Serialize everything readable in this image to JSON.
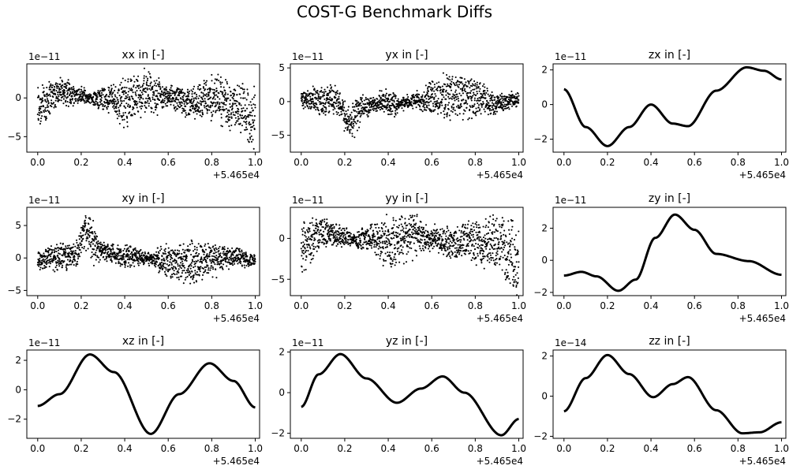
{
  "figure": {
    "title": "COST-G Benchmark Diffs"
  },
  "chart_data": [
    {
      "type": "scatter",
      "title": "xx in [-]",
      "ylim": [
        -7,
        4.4
      ],
      "yticks": [
        -5,
        0
      ],
      "exponent": "1e−11",
      "xlim": [
        -0.05,
        1.02
      ],
      "xticks": [
        "0.0",
        "0.2",
        "0.4",
        "0.6",
        "0.8",
        "1.0"
      ],
      "xoffset": "+5.465e4",
      "style": "noisy",
      "mean": [
        [
          0,
          -1.0
        ],
        [
          0.1,
          0.8
        ],
        [
          0.2,
          0.3
        ],
        [
          0.25,
          -0.2
        ],
        [
          0.3,
          0.0
        ],
        [
          0.4,
          -0.5
        ],
        [
          0.5,
          0.6
        ],
        [
          0.6,
          0.0
        ],
        [
          0.7,
          -0.6
        ],
        [
          0.8,
          0.0
        ],
        [
          0.9,
          -0.8
        ],
        [
          1.0,
          -2.6
        ]
      ],
      "spread": [
        [
          0,
          3.6
        ],
        [
          0.1,
          2.0
        ],
        [
          0.2,
          1.4
        ],
        [
          0.25,
          0.4
        ],
        [
          0.3,
          0.7
        ],
        [
          0.4,
          3.5
        ],
        [
          0.5,
          3.0
        ],
        [
          0.6,
          1.4
        ],
        [
          0.7,
          2.3
        ],
        [
          0.8,
          2.8
        ],
        [
          0.9,
          3.0
        ],
        [
          1.0,
          3.8
        ]
      ],
      "osc": [
        [
          0,
          0
        ],
        [
          0.2,
          0
        ],
        [
          0.3,
          1.2
        ],
        [
          0.4,
          0.3
        ],
        [
          0.5,
          1.0
        ],
        [
          0.6,
          0.4
        ],
        [
          0.7,
          0.2
        ],
        [
          0.85,
          1.1
        ],
        [
          1.0,
          1.8
        ]
      ]
    },
    {
      "type": "scatter",
      "title": "yx in [-]",
      "ylim": [
        -7.5,
        5.6
      ],
      "yticks": [
        -5,
        0,
        5
      ],
      "exponent": "1e−11",
      "xlim": [
        -0.05,
        1.02
      ],
      "xticks": [
        "0.0",
        "0.2",
        "0.4",
        "0.6",
        "0.8",
        "1.0"
      ],
      "xoffset": "+5.465e4",
      "style": "noisy",
      "mean": [
        [
          0,
          0.3
        ],
        [
          0.1,
          0.3
        ],
        [
          0.17,
          0.0
        ],
        [
          0.22,
          -3.2
        ],
        [
          0.28,
          -1.0
        ],
        [
          0.35,
          -0.2
        ],
        [
          0.45,
          -0.4
        ],
        [
          0.5,
          0.0
        ],
        [
          0.6,
          0.6
        ],
        [
          0.7,
          0.8
        ],
        [
          0.8,
          0.4
        ],
        [
          0.9,
          -0.3
        ],
        [
          1.0,
          0.3
        ]
      ],
      "spread": [
        [
          0,
          1.5
        ],
        [
          0.1,
          2.5
        ],
        [
          0.2,
          2.0
        ],
        [
          0.25,
          3.2
        ],
        [
          0.3,
          1.2
        ],
        [
          0.4,
          1.8
        ],
        [
          0.5,
          0.6
        ],
        [
          0.6,
          2.8
        ],
        [
          0.7,
          4.2
        ],
        [
          0.8,
          3.2
        ],
        [
          0.9,
          1.6
        ],
        [
          1.0,
          1.0
        ]
      ],
      "osc": [
        [
          0,
          0
        ],
        [
          0.15,
          0.4
        ],
        [
          0.22,
          1.2
        ],
        [
          0.3,
          0.6
        ],
        [
          0.5,
          0.6
        ],
        [
          0.7,
          0.2
        ],
        [
          1.0,
          0.3
        ]
      ]
    },
    {
      "type": "line",
      "title": "zx in [-]",
      "ylim": [
        -2.75,
        2.35
      ],
      "yticks": [
        -2,
        0,
        2
      ],
      "exponent": "1e−11",
      "xlim": [
        -0.05,
        1.02
      ],
      "xticks": [
        "0.0",
        "0.2",
        "0.4",
        "0.6",
        "0.8",
        "1.0"
      ],
      "xoffset": "+5.465e4",
      "style": "line",
      "mean": [
        [
          0,
          0.88
        ],
        [
          0.1,
          -1.3
        ],
        [
          0.2,
          -2.4
        ],
        [
          0.3,
          -1.3
        ],
        [
          0.4,
          0.0
        ],
        [
          0.5,
          -1.1
        ],
        [
          0.57,
          -1.25
        ],
        [
          0.7,
          0.8
        ],
        [
          0.84,
          2.15
        ],
        [
          0.92,
          1.95
        ],
        [
          1.0,
          1.45
        ]
      ]
    },
    {
      "type": "scatter",
      "title": "xy in [-]",
      "ylim": [
        -5.8,
        7.8
      ],
      "yticks": [
        -5,
        0,
        5
      ],
      "exponent": "1e−11",
      "xlim": [
        -0.05,
        1.02
      ],
      "xticks": [
        "0.0",
        "0.2",
        "0.4",
        "0.6",
        "0.8",
        "1.0"
      ],
      "xoffset": "+5.465e4",
      "style": "noisy",
      "mean": [
        [
          0,
          -0.3
        ],
        [
          0.1,
          0.2
        ],
        [
          0.17,
          0.5
        ],
        [
          0.22,
          4.2
        ],
        [
          0.28,
          1.5
        ],
        [
          0.35,
          0.4
        ],
        [
          0.45,
          0.3
        ],
        [
          0.5,
          0.0
        ],
        [
          0.6,
          -0.6
        ],
        [
          0.7,
          -0.7
        ],
        [
          0.8,
          -0.3
        ],
        [
          0.9,
          0.2
        ],
        [
          1.0,
          -0.5
        ]
      ],
      "spread": [
        [
          0,
          1.5
        ],
        [
          0.1,
          2.5
        ],
        [
          0.2,
          2.0
        ],
        [
          0.25,
          3.2
        ],
        [
          0.3,
          1.2
        ],
        [
          0.4,
          1.8
        ],
        [
          0.5,
          0.6
        ],
        [
          0.6,
          2.8
        ],
        [
          0.7,
          4.2
        ],
        [
          0.8,
          3.2
        ],
        [
          0.9,
          1.6
        ],
        [
          1.0,
          1.0
        ]
      ],
      "osc": [
        [
          0,
          0
        ],
        [
          0.15,
          0.4
        ],
        [
          0.22,
          1.2
        ],
        [
          0.3,
          0.6
        ],
        [
          0.5,
          0.6
        ],
        [
          0.7,
          0.2
        ],
        [
          1.0,
          0.3
        ]
      ]
    },
    {
      "type": "scatter",
      "title": "yy in [-]",
      "ylim": [
        -7,
        3.8
      ],
      "yticks": [
        -5,
        0
      ],
      "exponent": "1e−11",
      "xlim": [
        -0.05,
        1.02
      ],
      "xticks": [
        "0.0",
        "0.2",
        "0.4",
        "0.6",
        "0.8",
        "1.0"
      ],
      "xoffset": "+5.465e4",
      "style": "noisy",
      "mean": [
        [
          0,
          -1.0
        ],
        [
          0.1,
          0.8
        ],
        [
          0.2,
          0.3
        ],
        [
          0.25,
          -0.2
        ],
        [
          0.3,
          0.0
        ],
        [
          0.4,
          -0.5
        ],
        [
          0.5,
          0.6
        ],
        [
          0.6,
          0.0
        ],
        [
          0.7,
          -0.6
        ],
        [
          0.8,
          0.0
        ],
        [
          0.9,
          -0.8
        ],
        [
          1.0,
          -2.6
        ]
      ],
      "spread": [
        [
          0,
          3.6
        ],
        [
          0.1,
          2.0
        ],
        [
          0.2,
          1.4
        ],
        [
          0.25,
          0.4
        ],
        [
          0.3,
          0.7
        ],
        [
          0.4,
          3.5
        ],
        [
          0.5,
          3.0
        ],
        [
          0.6,
          1.4
        ],
        [
          0.7,
          2.3
        ],
        [
          0.8,
          2.8
        ],
        [
          0.9,
          3.0
        ],
        [
          1.0,
          3.8
        ]
      ],
      "osc": [
        [
          0,
          0
        ],
        [
          0.2,
          0
        ],
        [
          0.3,
          1.2
        ],
        [
          0.4,
          0.3
        ],
        [
          0.5,
          1.0
        ],
        [
          0.6,
          0.4
        ],
        [
          0.7,
          0.2
        ],
        [
          0.85,
          1.1
        ],
        [
          1.0,
          1.8
        ]
      ]
    },
    {
      "type": "line",
      "title": "zy in [-]",
      "ylim": [
        -2.2,
        3.3
      ],
      "yticks": [
        -2,
        0,
        2
      ],
      "exponent": "1e−11",
      "xlim": [
        -0.05,
        1.02
      ],
      "xticks": [
        "0.0",
        "0.2",
        "0.4",
        "0.6",
        "0.8",
        "1.0"
      ],
      "xoffset": "+5.465e4",
      "style": "line",
      "mean": [
        [
          0,
          -0.95
        ],
        [
          0.08,
          -0.72
        ],
        [
          0.15,
          -1.0
        ],
        [
          0.25,
          -1.9
        ],
        [
          0.33,
          -1.2
        ],
        [
          0.42,
          1.4
        ],
        [
          0.51,
          2.85
        ],
        [
          0.6,
          1.9
        ],
        [
          0.7,
          0.4
        ],
        [
          0.85,
          -0.05
        ],
        [
          1.0,
          -0.9
        ]
      ]
    },
    {
      "type": "line",
      "title": "xz in [-]",
      "ylim": [
        -3.3,
        2.7
      ],
      "yticks": [
        -2,
        0,
        2
      ],
      "exponent": "1e−11",
      "xlim": [
        -0.05,
        1.02
      ],
      "xticks": [
        "0.0",
        "0.2",
        "0.4",
        "0.6",
        "0.8",
        "1.0"
      ],
      "xoffset": "+5.465e4",
      "style": "line",
      "mean": [
        [
          0,
          -1.1
        ],
        [
          0.1,
          -0.3
        ],
        [
          0.24,
          2.4
        ],
        [
          0.35,
          1.2
        ],
        [
          0.52,
          -3.0
        ],
        [
          0.65,
          -0.3
        ],
        [
          0.79,
          1.8
        ],
        [
          0.9,
          0.6
        ],
        [
          1.0,
          -1.2
        ]
      ]
    },
    {
      "type": "line",
      "title": "yz in [-]",
      "ylim": [
        -2.25,
        2.1
      ],
      "yticks": [
        -2,
        0,
        2
      ],
      "exponent": "1e−11",
      "xlim": [
        -0.05,
        1.02
      ],
      "xticks": [
        "0.0",
        "0.2",
        "0.4",
        "0.6",
        "0.8",
        "1.0"
      ],
      "xoffset": "+5.465e4",
      "style": "line",
      "mean": [
        [
          0,
          -0.7
        ],
        [
          0.08,
          0.9
        ],
        [
          0.18,
          1.9
        ],
        [
          0.3,
          0.7
        ],
        [
          0.44,
          -0.5
        ],
        [
          0.55,
          0.2
        ],
        [
          0.65,
          0.8
        ],
        [
          0.75,
          0.0
        ],
        [
          0.92,
          -2.1
        ],
        [
          1.0,
          -1.3
        ]
      ]
    },
    {
      "type": "line",
      "title": "zz in [-]",
      "ylim": [
        -2.1,
        2.3
      ],
      "yticks": [
        -2,
        0,
        2
      ],
      "exponent": "1e−14",
      "xlim": [
        -0.05,
        1.02
      ],
      "xticks": [
        "0.0",
        "0.2",
        "0.4",
        "0.6",
        "0.8",
        "1.0"
      ],
      "xoffset": "+5.465e4",
      "style": "line",
      "mean": [
        [
          0,
          -0.75
        ],
        [
          0.1,
          0.9
        ],
        [
          0.2,
          2.05
        ],
        [
          0.3,
          1.1
        ],
        [
          0.41,
          -0.05
        ],
        [
          0.5,
          0.6
        ],
        [
          0.57,
          0.95
        ],
        [
          0.7,
          -0.7
        ],
        [
          0.82,
          -1.85
        ],
        [
          0.9,
          -1.8
        ],
        [
          1.0,
          -1.3
        ]
      ]
    }
  ]
}
